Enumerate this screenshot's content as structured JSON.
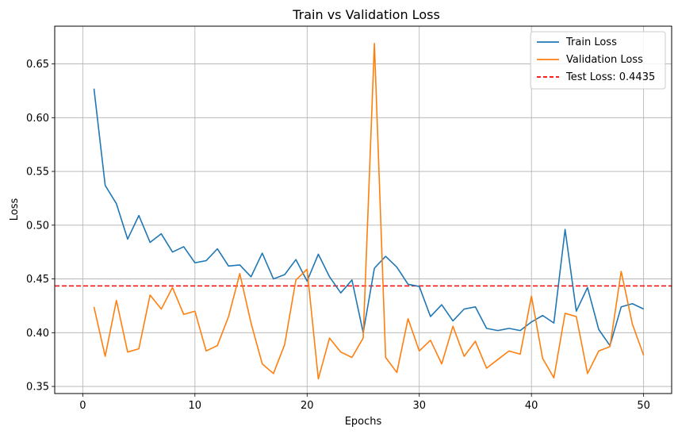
{
  "chart_data": {
    "type": "line",
    "title": "Train vs Validation Loss",
    "xlabel": "Epochs",
    "ylabel": "Loss",
    "xlim": [
      -2.5,
      52.5
    ],
    "ylim": [
      0.3434,
      0.6851
    ],
    "xticks": [
      0,
      10,
      20,
      30,
      40,
      50
    ],
    "xtick_labels": [
      "0",
      "10",
      "20",
      "30",
      "40",
      "50"
    ],
    "yticks": [
      0.35,
      0.4,
      0.45,
      0.5,
      0.55,
      0.6,
      0.65
    ],
    "ytick_labels": [
      "0.35",
      "0.40",
      "0.45",
      "0.50",
      "0.55",
      "0.60",
      "0.65"
    ],
    "grid": true,
    "legend_position": "top-right",
    "x": [
      1,
      2,
      3,
      4,
      5,
      6,
      7,
      8,
      9,
      10,
      11,
      12,
      13,
      14,
      15,
      16,
      17,
      18,
      19,
      20,
      21,
      22,
      23,
      24,
      25,
      26,
      27,
      28,
      29,
      30,
      31,
      32,
      33,
      34,
      35,
      36,
      37,
      38,
      39,
      40,
      41,
      42,
      43,
      44,
      45,
      46,
      47,
      48,
      49,
      50
    ],
    "series": [
      {
        "name": "Train Loss",
        "color": "#1f77b4",
        "style": "solid",
        "values": [
          0.627,
          0.537,
          0.52,
          0.487,
          0.509,
          0.484,
          0.492,
          0.475,
          0.48,
          0.465,
          0.467,
          0.478,
          0.462,
          0.463,
          0.452,
          0.474,
          0.45,
          0.454,
          0.468,
          0.448,
          0.473,
          0.452,
          0.437,
          0.449,
          0.4,
          0.46,
          0.471,
          0.461,
          0.445,
          0.443,
          0.415,
          0.426,
          0.411,
          0.422,
          0.424,
          0.404,
          0.402,
          0.404,
          0.402,
          0.41,
          0.416,
          0.409,
          0.496,
          0.42,
          0.442,
          0.403,
          0.388,
          0.424,
          0.427,
          0.422
        ]
      },
      {
        "name": "Validation Loss",
        "color": "#ff7f0e",
        "style": "solid",
        "values": [
          0.424,
          0.378,
          0.43,
          0.382,
          0.385,
          0.435,
          0.422,
          0.442,
          0.417,
          0.42,
          0.383,
          0.388,
          0.415,
          0.455,
          0.409,
          0.371,
          0.362,
          0.389,
          0.449,
          0.459,
          0.357,
          0.395,
          0.382,
          0.377,
          0.395,
          0.669,
          0.377,
          0.363,
          0.413,
          0.383,
          0.393,
          0.371,
          0.406,
          0.378,
          0.392,
          0.367,
          0.375,
          0.383,
          0.38,
          0.434,
          0.376,
          0.358,
          0.418,
          0.415,
          0.362,
          0.383,
          0.387,
          0.457,
          0.408,
          0.379
        ]
      }
    ],
    "reference_lines": [
      {
        "name": "Test Loss: 0.4435",
        "value": 0.4435,
        "color": "#ff0000",
        "style": "dashed"
      }
    ]
  }
}
